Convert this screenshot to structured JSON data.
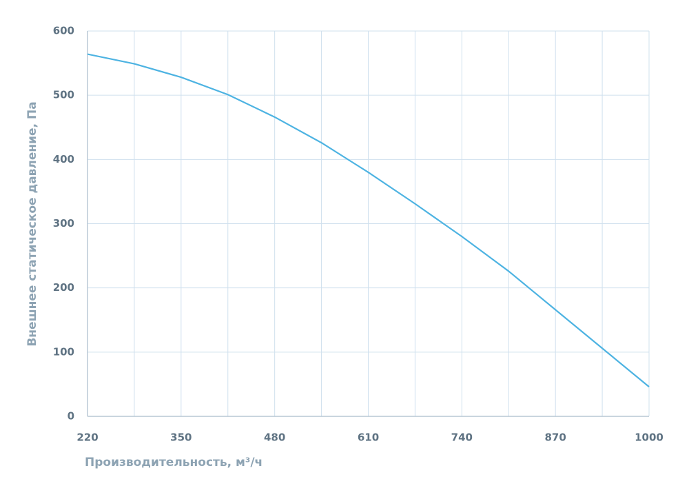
{
  "chart_data": {
    "type": "line",
    "x_label": "Производительность, м³/ч",
    "y_label": "Внешнее статическое давление, Па",
    "x": [
      220,
      285,
      350,
      415,
      480,
      545,
      610,
      675,
      740,
      805,
      870,
      935,
      1000
    ],
    "series": [
      {
        "color": "#4db3e2",
        "values": [
          564,
          549,
          528,
          501,
          466,
          426,
          380,
          331,
          280,
          226,
          166,
          106,
          46
        ]
      }
    ],
    "xlim": [
      220,
      1000
    ],
    "xticks": [
      220,
      350,
      480,
      610,
      740,
      870,
      1000
    ],
    "x_minor_ticks": [
      285,
      415,
      545,
      675,
      805,
      935
    ],
    "ylim": [
      0,
      600
    ],
    "yticks": [
      0,
      100,
      200,
      300,
      400,
      500,
      600
    ],
    "grid": true
  }
}
